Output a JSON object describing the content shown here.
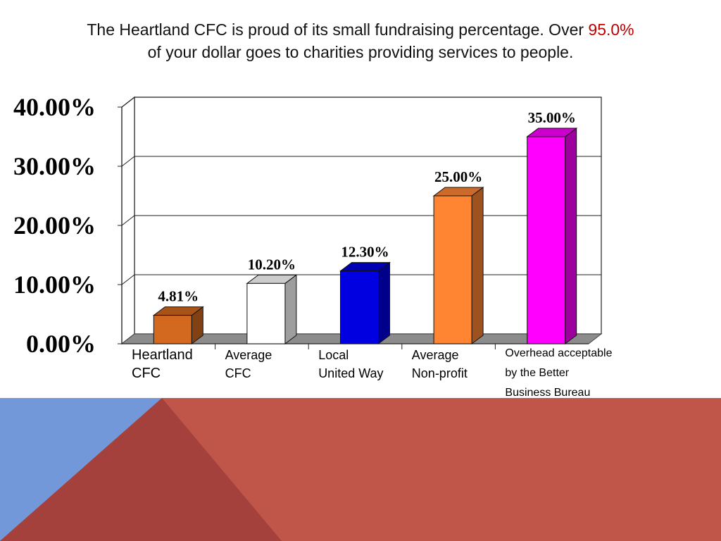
{
  "title": {
    "line1_before": "The Heartland CFC is proud of its small fundraising percentage.  Over ",
    "highlight": "95.0%",
    "line2": "of your dollar goes to charities providing services to people."
  },
  "colors": {
    "highlight": "#c00000",
    "footer_blue": "#7398d9",
    "footer_red": "#c0564a",
    "footer_dark": "#a5413c"
  },
  "chart_data": {
    "type": "bar",
    "style": "3d",
    "categories": [
      [
        "Heartland",
        "CFC"
      ],
      [
        "Average",
        "CFC"
      ],
      [
        "Local",
        "United Way"
      ],
      [
        "Average",
        "Non-profit"
      ],
      [
        "Overhead acceptable",
        "by the Better",
        "Business Bureau"
      ]
    ],
    "values": [
      4.81,
      10.2,
      12.3,
      25.0,
      35.0
    ],
    "data_labels": [
      "4.81%",
      "10.20%",
      "12.30%",
      "25.00%",
      "35.00%"
    ],
    "bar_colors": [
      "#d2691e",
      "#ffffff",
      "#0000e0",
      "#ff8533",
      "#ff00ff"
    ],
    "ylim": [
      0,
      40
    ],
    "yticks": [
      0,
      10,
      20,
      30,
      40
    ],
    "ytick_labels": [
      "0.00%",
      "10.00%",
      "20.00%",
      "30.00%",
      "40.00%"
    ],
    "grid": true,
    "legend": "none"
  }
}
